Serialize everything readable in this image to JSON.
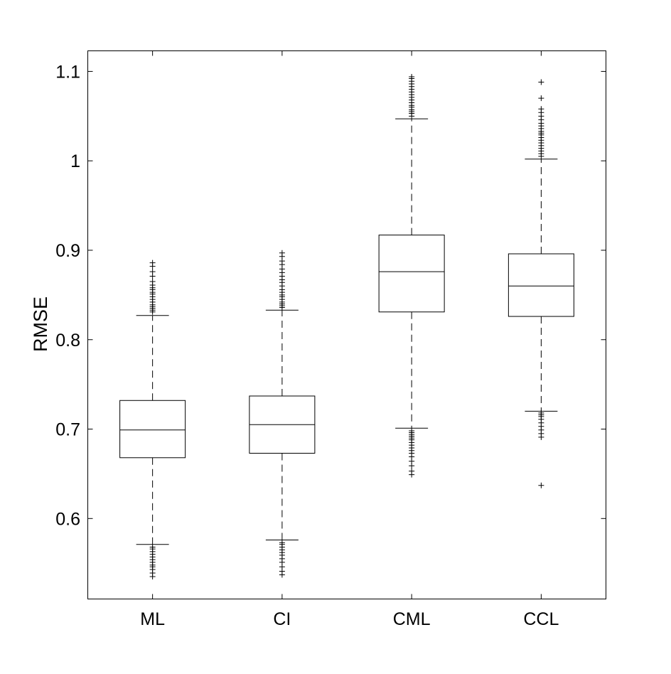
{
  "chart_data": {
    "type": "boxplot",
    "title": "",
    "xlabel": "",
    "ylabel": "RMSE",
    "ylim": [
      0.51,
      1.123
    ],
    "yticks": [
      0.6,
      0.7,
      0.8,
      0.9,
      1.0,
      1.1
    ],
    "ytick_labels": [
      "0.6",
      "0.7",
      "0.8",
      "0.9",
      "1",
      "1.1"
    ],
    "grid": false,
    "legend": "none",
    "colors": {
      "box": "#000000",
      "median": "#000000",
      "whisker": "#000000",
      "outlier": "#000000",
      "background": "#ffffff"
    },
    "categories": [
      "ML",
      "CI",
      "CML",
      "CCL"
    ],
    "boxes": [
      {
        "label": "ML",
        "whisker_low": 0.571,
        "q1": 0.668,
        "median": 0.699,
        "q3": 0.732,
        "whisker_high": 0.827,
        "outliers": [
          0.535,
          0.539,
          0.543,
          0.546,
          0.548,
          0.551,
          0.554,
          0.557,
          0.56,
          0.563,
          0.566,
          0.568,
          0.831,
          0.833,
          0.835,
          0.837,
          0.839,
          0.842,
          0.845,
          0.848,
          0.851,
          0.853,
          0.856,
          0.858,
          0.861,
          0.865,
          0.871,
          0.876,
          0.882,
          0.886
        ]
      },
      {
        "label": "CI",
        "whisker_low": 0.576,
        "q1": 0.673,
        "median": 0.705,
        "q3": 0.737,
        "whisker_high": 0.833,
        "outliers": [
          0.537,
          0.541,
          0.546,
          0.551,
          0.555,
          0.559,
          0.562,
          0.565,
          0.568,
          0.571,
          0.573,
          0.836,
          0.838,
          0.84,
          0.842,
          0.845,
          0.848,
          0.85,
          0.853,
          0.856,
          0.86,
          0.864,
          0.867,
          0.871,
          0.875,
          0.879,
          0.884,
          0.888,
          0.893,
          0.897
        ]
      },
      {
        "label": "CML",
        "whisker_low": 0.701,
        "q1": 0.831,
        "median": 0.876,
        "q3": 0.917,
        "whisker_high": 1.047,
        "outliers": [
          0.649,
          0.653,
          0.659,
          0.664,
          0.669,
          0.673,
          0.676,
          0.679,
          0.682,
          0.685,
          0.688,
          0.69,
          0.692,
          0.694,
          0.696,
          0.698,
          1.05,
          1.053,
          1.055,
          1.057,
          1.06,
          1.062,
          1.065,
          1.068,
          1.071,
          1.074,
          1.077,
          1.08,
          1.083,
          1.086,
          1.089,
          1.092,
          1.094
        ]
      },
      {
        "label": "CCL",
        "whisker_low": 0.72,
        "q1": 0.826,
        "median": 0.86,
        "q3": 0.896,
        "whisker_high": 1.002,
        "outliers": [
          0.637,
          0.691,
          0.695,
          0.699,
          0.703,
          0.707,
          0.711,
          0.714,
          0.716,
          0.718,
          1.005,
          1.008,
          1.011,
          1.014,
          1.017,
          1.02,
          1.023,
          1.026,
          1.029,
          1.031,
          1.033,
          1.036,
          1.039,
          1.042,
          1.046,
          1.05,
          1.054,
          1.058,
          1.07,
          1.088
        ]
      }
    ]
  }
}
